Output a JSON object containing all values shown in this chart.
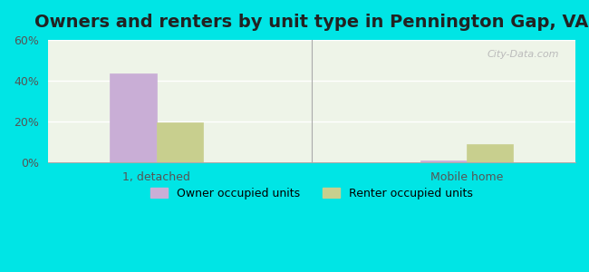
{
  "title": "Owners and renters by unit type in Pennington Gap, VA",
  "categories": [
    "1, detached",
    "Mobile home"
  ],
  "owner_values": [
    43.5,
    1.0
  ],
  "renter_values": [
    19.5,
    9.0
  ],
  "owner_color": "#c9aed6",
  "renter_color": "#c8cf8e",
  "bar_width": 0.35,
  "ylim": [
    0,
    60
  ],
  "yticks": [
    0,
    20,
    40,
    60
  ],
  "ytick_labels": [
    "0%",
    "20%",
    "40%",
    "60%"
  ],
  "background_color": "#00e5e5",
  "plot_bg_color_top": "#f0f5e8",
  "plot_bg_color_bottom": "#e8f5f0",
  "title_fontsize": 14,
  "legend_labels": [
    "Owner occupied units",
    "Renter occupied units"
  ],
  "watermark": "City-Data.com"
}
